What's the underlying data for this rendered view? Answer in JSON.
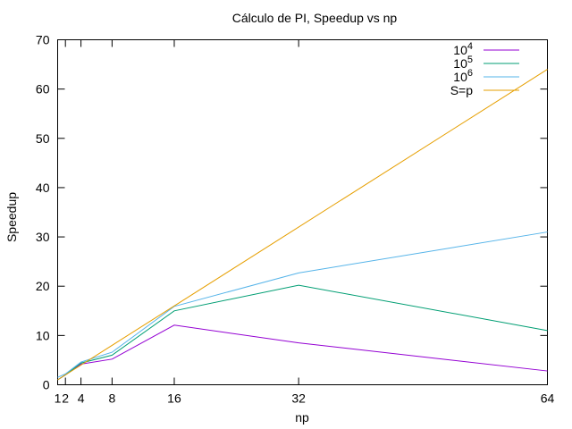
{
  "chart_data": {
    "type": "line",
    "title": "Cálculo de PI, Speedup vs np",
    "xlabel": "np",
    "ylabel": "Speedup",
    "xlim": [
      1,
      64
    ],
    "ylim": [
      0,
      70
    ],
    "xticks": [
      1,
      2,
      4,
      8,
      16,
      32,
      64
    ],
    "yticks": [
      0,
      10,
      20,
      30,
      40,
      50,
      60,
      70
    ],
    "grid": false,
    "legend_position": "top-right",
    "series": [
      {
        "name": "10^4",
        "legend_base": "10",
        "legend_exp": "4",
        "color": "#9400d3",
        "x": [
          1,
          2,
          4,
          8,
          16,
          32,
          64
        ],
        "y": [
          1,
          2,
          4.2,
          5.2,
          12.1,
          8.5,
          2.8
        ]
      },
      {
        "name": "10^5",
        "legend_base": "10",
        "legend_exp": "5",
        "color": "#009e73",
        "x": [
          1,
          2,
          4,
          8,
          16,
          32,
          64
        ],
        "y": [
          1,
          2,
          4.4,
          6,
          15,
          20.2,
          11
        ]
      },
      {
        "name": "10^6",
        "legend_base": "10",
        "legend_exp": "6",
        "color": "#56b4e9",
        "x": [
          1,
          2,
          4,
          8,
          16,
          32,
          64
        ],
        "y": [
          1.5,
          2.2,
          4.6,
          6.6,
          15.9,
          22.7,
          31
        ]
      },
      {
        "name": "S=p",
        "legend_label": "S=p",
        "color": "#e69f00",
        "x": [
          1,
          64
        ],
        "y": [
          1,
          64
        ]
      }
    ]
  }
}
